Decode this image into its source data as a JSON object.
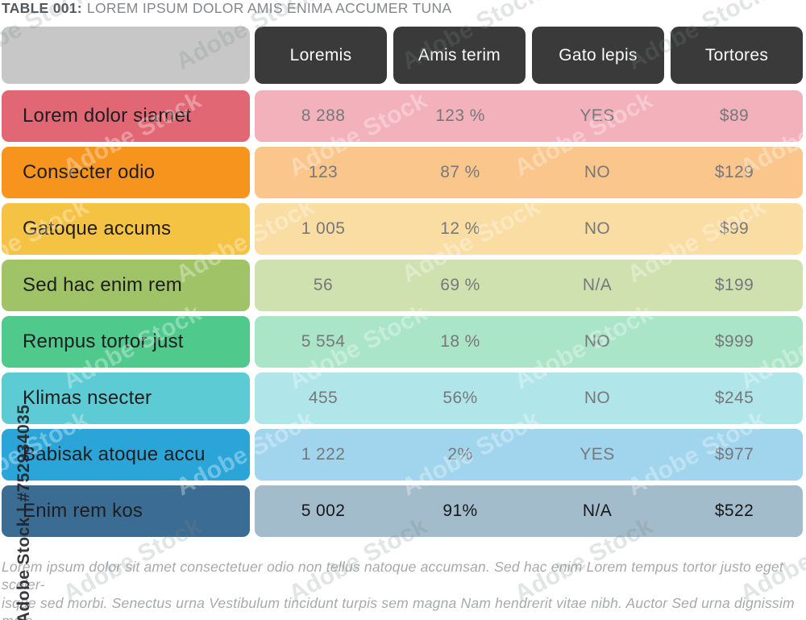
{
  "title": {
    "prefix": "TABLE 001:",
    "rest": "LOREM IPSUM DOLOR AMIS ENIMA ACCUMER TUNA"
  },
  "table": {
    "columns": [
      "Loremis",
      "Amis terim",
      "Gato lepis",
      "Tortores"
    ],
    "rows": [
      {
        "label": "Lorem dolor siamet",
        "values": [
          "8 288",
          "123 %",
          "YES",
          "$89"
        ],
        "color": "#e06773",
        "tint": "#f3b1bb",
        "emphasis": false
      },
      {
        "label": "Consecter odio",
        "values": [
          "123",
          "87 %",
          "NO",
          "$129"
        ],
        "color": "#f7941e",
        "tint": "#fbc68b",
        "emphasis": false
      },
      {
        "label": "Gatoque accums",
        "values": [
          "1 005",
          "12 %",
          "NO",
          "$99"
        ],
        "color": "#f5c344",
        "tint": "#fadda2",
        "emphasis": false
      },
      {
        "label": "Sed hac enim rem",
        "values": [
          "56",
          "69 %",
          "N/A",
          "$199"
        ],
        "color": "#9fc366",
        "tint": "#d0e1b0",
        "emphasis": false
      },
      {
        "label": "Rempus tortor just",
        "values": [
          "5 554",
          "18 %",
          "NO",
          "$999"
        ],
        "color": "#4fc98c",
        "tint": "#abe5c7",
        "emphasis": false
      },
      {
        "label": "Klimas nsecter",
        "values": [
          "455",
          "56%",
          "NO",
          "$245"
        ],
        "color": "#5ccbd3",
        "tint": "#b0e6ea",
        "emphasis": false
      },
      {
        "label": "Babisak atoque accu",
        "values": [
          "1 222",
          "2%",
          "YES",
          "$977"
        ],
        "color": "#2ba5d8",
        "tint": "#a1d5ed",
        "emphasis": false
      },
      {
        "label": "Enim rem kos",
        "values": [
          "5 002",
          "91%",
          "N/A",
          "$522"
        ],
        "color": "#3b6c94",
        "tint": "#a3bccb",
        "emphasis": true
      }
    ]
  },
  "chart_data": {
    "type": "table",
    "title": "TABLE 001: LOREM IPSUM DOLOR AMIS ENIMA ACCUMER TUNA",
    "columns": [
      "",
      "Loremis",
      "Amis terim",
      "Gato lepis",
      "Tortores"
    ],
    "rows": [
      [
        "Lorem dolor siamet",
        "8 288",
        "123 %",
        "YES",
        "$89"
      ],
      [
        "Consecter odio",
        "123",
        "87 %",
        "NO",
        "$129"
      ],
      [
        "Gatoque accums",
        "1 005",
        "12 %",
        "NO",
        "$99"
      ],
      [
        "Sed hac enim rem",
        "56",
        "69 %",
        "N/A",
        "$199"
      ],
      [
        "Rempus tortor just",
        "5 554",
        "18 %",
        "NO",
        "$999"
      ],
      [
        "Klimas nsecter",
        "455",
        "56%",
        "NO",
        "$245"
      ],
      [
        "Babisak atoque accu",
        "1 222",
        "2%",
        "YES",
        "$977"
      ],
      [
        "Enim rem kos",
        "5 002",
        "91%",
        "N/A",
        "$522"
      ]
    ]
  },
  "footer": {
    "text": "Lorem ipsum dolor sit amet consectetuer odio non tellus natoque accumsan. Sed hac enim Lorem tempus tortor justo eget sceler-\nisque sed morbi. Senectus urna Vestibulum tincidunt turpis sem magna Nam hendrerit vitae nibh. Auctor Sed urna dignissim male-\nsuada eleifend ultrices justo Curabitur Maecenas orci. Tincidunt adipiscing elit et et."
  },
  "watermark": {
    "tile_text": "Adobe Stock",
    "credit": "Adobe Stock | #752934035"
  },
  "colors": {
    "header_bg": "#3a3a3a",
    "corner_bg": "#c7c7c7",
    "value_text": "#77787c",
    "label_text": "#1e1e20",
    "footer_text": "#a7a9ac"
  }
}
